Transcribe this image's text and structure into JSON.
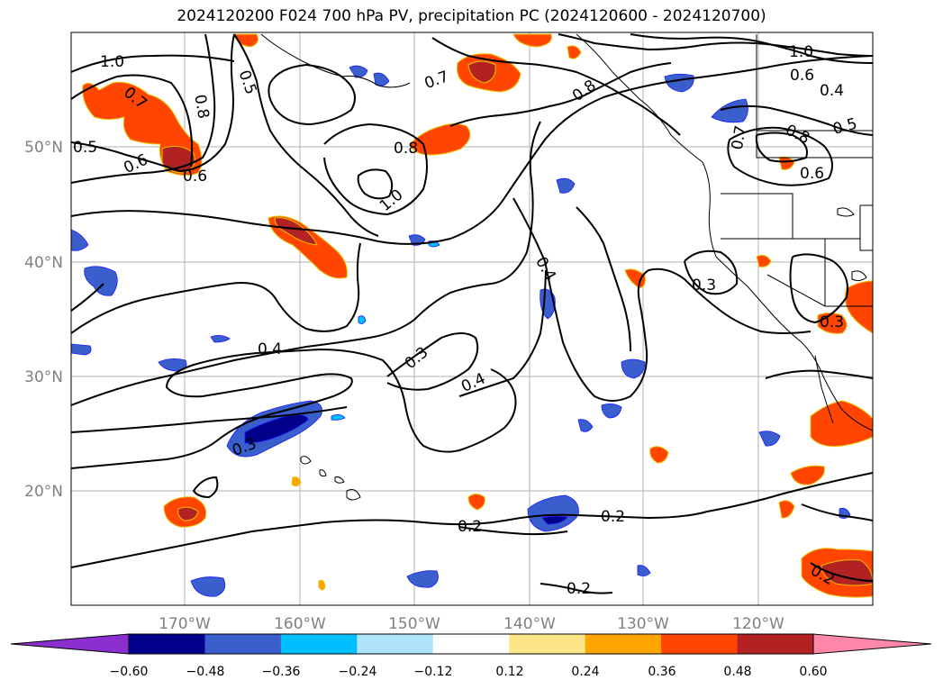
{
  "title": "2024120200 F024 700 hPa PV, precipitation PC (2024120600 - 2024120700)",
  "lat_labels": [
    "50°N",
    "40°N",
    "30°N",
    "20°N"
  ],
  "lon_labels": [
    "170°W",
    "160°W",
    "150°W",
    "140°W",
    "130°W",
    "120°W"
  ],
  "contour_labels": [
    "1.0",
    "0.8",
    "0.5",
    "0.7",
    "0.5",
    "0.6",
    "0.6",
    "0.8",
    "1.0",
    "0.7",
    "0.8",
    "1.0",
    "0.6",
    "0.4",
    "0.5",
    "0.8",
    "0.7",
    "0.6",
    "0.4",
    "0.3",
    "0.3",
    "0.4",
    "0.3",
    "0.4",
    "0.3",
    "0.2",
    "0.2",
    "0.2",
    "0.2"
  ],
  "colorbar": {
    "tick_labels": [
      "−0.60",
      "−0.48",
      "−0.36",
      "−0.24",
      "−0.12",
      "0.12",
      "0.24",
      "0.36",
      "0.48",
      "0.60"
    ],
    "colors": [
      "#8b2fd0",
      "#00008b",
      "#3a5fcd",
      "#00bfff",
      "#aee3fa",
      "#ffffff",
      "#fde68a",
      "#ffa500",
      "#ff4500",
      "#b22222",
      "#ff88aa"
    ]
  },
  "colors": {
    "negative_strong": "#00008b",
    "negative_mid": "#3a5fcd",
    "negative_light": "#00bfff",
    "positive_light": "#ffa500",
    "positive_mid": "#ff4500",
    "positive_strong": "#b22222",
    "positive_max": "#cc3366"
  }
}
